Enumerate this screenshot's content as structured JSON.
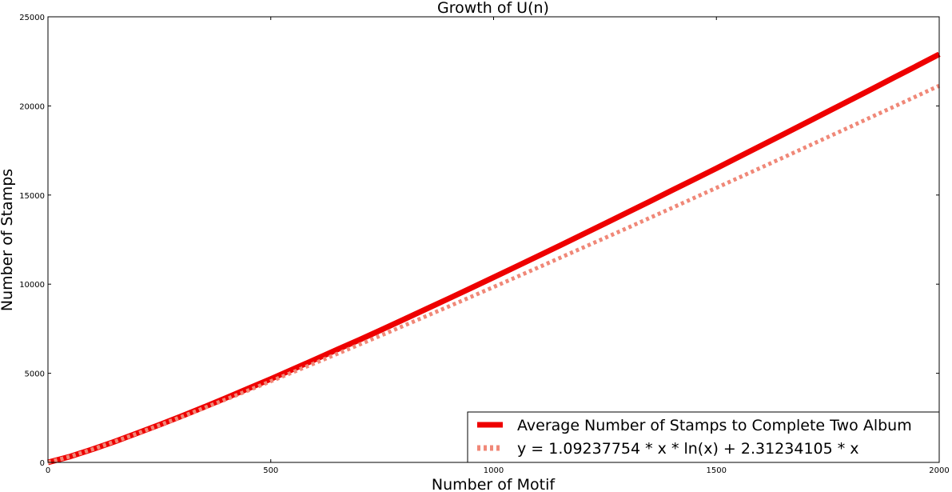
{
  "chart_data": {
    "type": "line",
    "title": "Growth of U(n)",
    "xlabel": "Number of Motif",
    "ylabel": "Number of Stamps",
    "xlim": [
      0,
      2000
    ],
    "ylim": [
      0,
      25000
    ],
    "x_ticks": [
      "0",
      "500",
      "1000",
      "1500",
      "2000"
    ],
    "y_ticks": [
      "0",
      "5000",
      "10000",
      "15000",
      "20000",
      "25000"
    ],
    "grid": false,
    "legend_position": "lower-right",
    "x": [
      0,
      50,
      100,
      150,
      200,
      250,
      300,
      350,
      400,
      450,
      500,
      550,
      600,
      650,
      700,
      750,
      800,
      850,
      900,
      950,
      1000,
      1050,
      1100,
      1150,
      1200,
      1250,
      1300,
      1350,
      1400,
      1450,
      1500,
      1550,
      1600,
      1650,
      1700,
      1750,
      1800,
      1850,
      1900,
      1950,
      2000
    ],
    "series": [
      {
        "name": "Average Number of Stamps to Complete Two Album",
        "color": "#ee0000",
        "style": "solid",
        "values": [
          0,
          330,
          735,
          1170,
          1640,
          2110,
          2600,
          3100,
          3620,
          4150,
          4680,
          5230,
          5780,
          6340,
          6890,
          7460,
          8040,
          8620,
          9200,
          9790,
          10380,
          10980,
          11580,
          12180,
          12790,
          13400,
          14020,
          14630,
          15260,
          15880,
          16500,
          17130,
          17770,
          18400,
          19040,
          19680,
          20320,
          20960,
          21610,
          22250,
          22900
        ]
      },
      {
        "name": "y = 1.09237754 * x * ln(x) + 2.31234105 * x",
        "color": "#f08878",
        "style": "dotted",
        "values": [
          0,
          330,
          735,
          1167,
          1620,
          2086,
          2563,
          3049,
          3543,
          4043,
          4550,
          5061,
          5578,
          6098,
          6623,
          7151,
          7683,
          8218,
          8756,
          9297,
          9840,
          10387,
          10935,
          11486,
          12040,
          12595,
          13153,
          13712,
          14273,
          14837,
          15402,
          15968,
          16537,
          17106,
          17678,
          18251,
          18825,
          19401,
          19978,
          20557,
          21137
        ]
      }
    ]
  }
}
